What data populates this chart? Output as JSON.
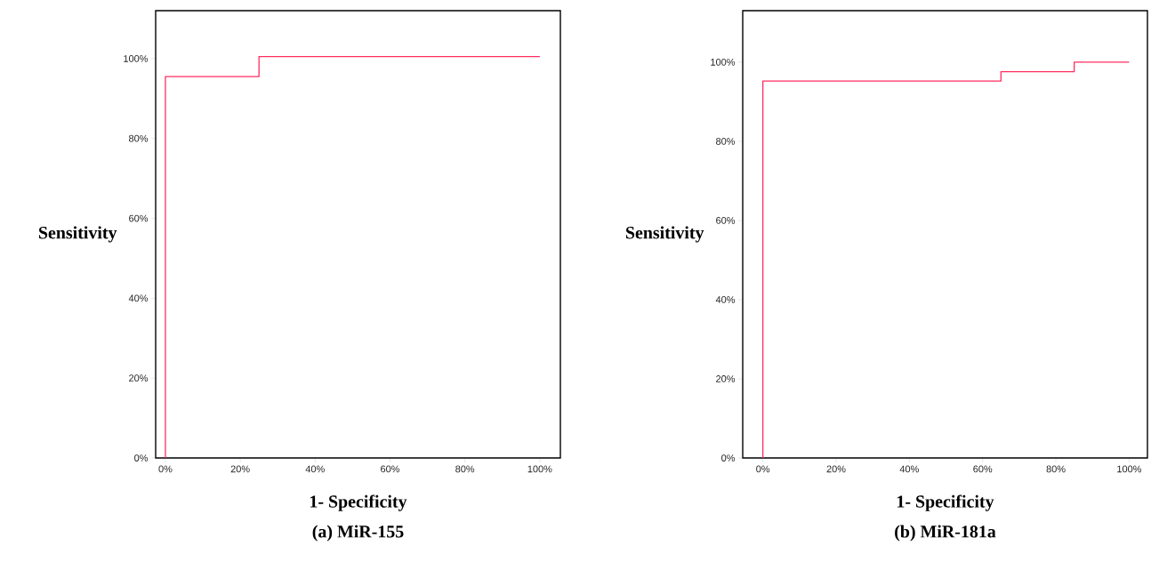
{
  "chart_data": [
    {
      "type": "line",
      "title": "(a) MiR-155",
      "xlabel": "1- Specificity",
      "ylabel": "Sensitivity",
      "marker": "none",
      "color": "#ff2d5f",
      "x": [
        0,
        0,
        25,
        25,
        100
      ],
      "values": [
        0,
        95.5,
        95.5,
        100.5,
        100.5
      ],
      "xlim": [
        -2.6,
        105.5
      ],
      "ylim": [
        0,
        112
      ],
      "xticks": [
        {
          "value": 0,
          "label": "0%"
        },
        {
          "value": 20,
          "label": "20%"
        },
        {
          "value": 40,
          "label": "40%"
        },
        {
          "value": 60,
          "label": "60%"
        },
        {
          "value": 80,
          "label": "80%"
        },
        {
          "value": 100,
          "label": "100%"
        }
      ],
      "yticks": [
        {
          "value": 0,
          "label": "0%"
        },
        {
          "value": 20,
          "label": "20%"
        },
        {
          "value": 40,
          "label": "40%"
        },
        {
          "value": 60,
          "label": "60%"
        },
        {
          "value": 80,
          "label": "80%"
        },
        {
          "value": 100,
          "label": "100%"
        }
      ]
    },
    {
      "type": "line",
      "title": "(b) MiR-181a",
      "xlabel": "1- Specificity",
      "ylabel": "Sensitivity",
      "marker": "none",
      "color": "#ff2d5f",
      "x": [
        0,
        0,
        65,
        65,
        85,
        85,
        100
      ],
      "values": [
        0,
        95.2,
        95.2,
        97.6,
        97.6,
        100,
        100
      ],
      "xlim": [
        -5.5,
        105
      ],
      "ylim": [
        0,
        113
      ],
      "xticks": [
        {
          "value": 0,
          "label": "0%"
        },
        {
          "value": 20,
          "label": "20%"
        },
        {
          "value": 40,
          "label": "40%"
        },
        {
          "value": 60,
          "label": "60%"
        },
        {
          "value": 80,
          "label": "80%"
        },
        {
          "value": 100,
          "label": "100%"
        }
      ],
      "yticks": [
        {
          "value": 0,
          "label": "0%"
        },
        {
          "value": 20,
          "label": "20%"
        },
        {
          "value": 40,
          "label": "40%"
        },
        {
          "value": 60,
          "label": "60%"
        },
        {
          "value": 80,
          "label": "80%"
        },
        {
          "value": 100,
          "label": "100%"
        }
      ]
    }
  ]
}
